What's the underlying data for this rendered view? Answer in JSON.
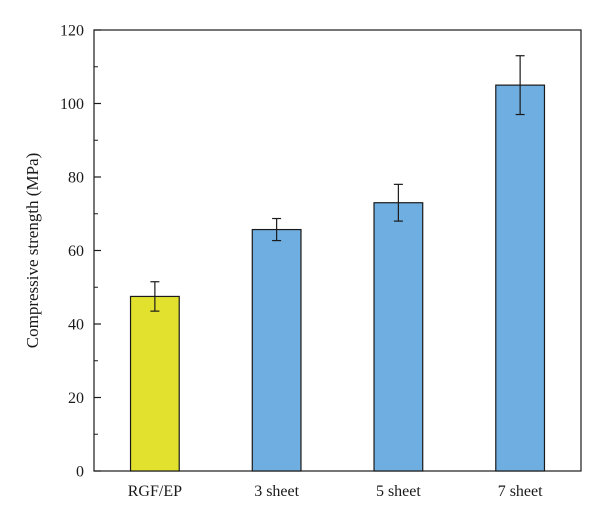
{
  "chart_data": {
    "type": "bar",
    "categories": [
      "RGF/EP",
      "3 sheet",
      "5 sheet",
      "7 sheet"
    ],
    "values": [
      47.5,
      65.7,
      73.0,
      105.0
    ],
    "error": [
      4.0,
      3.0,
      5.0,
      8.0
    ],
    "bar_colors": [
      "#e1e12e",
      "#6faee0",
      "#6faee0",
      "#6faee0"
    ],
    "title": "",
    "xlabel": "",
    "ylabel": "Compressive strength (MPa)",
    "ylim": [
      0,
      120
    ],
    "yticks": [
      0,
      20,
      40,
      60,
      80,
      100,
      120
    ],
    "grid": false,
    "legend": "none"
  }
}
